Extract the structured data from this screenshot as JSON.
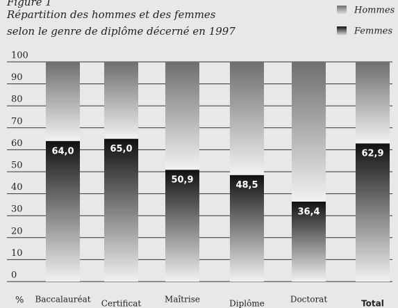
{
  "chart_data": {
    "type": "stacked_bar",
    "title": "Figure 1",
    "subtitle": [
      "Répartition des hommes et des femmes",
      "selon le genre de diplôme décerné en 1997"
    ],
    "ylabel": "%",
    "categories": [
      "Baccalauréat",
      "Certificat",
      "Maîtrise",
      "Diplôme",
      "Doctorat",
      "Total"
    ],
    "series": [
      {
        "name": "Femmes",
        "color": "#111111",
        "values": [
          64.0,
          65.0,
          50.9,
          48.5,
          36.4,
          62.9
        ],
        "value_labels": [
          "64,0",
          "65,0",
          "50,9",
          "48,5",
          "36,4",
          "62,9"
        ]
      },
      {
        "name": "Hommes",
        "color": "#6e6e6e",
        "values": [
          36.0,
          35.0,
          49.1,
          51.5,
          63.6,
          37.1
        ]
      }
    ],
    "ylim": [
      0,
      100
    ],
    "yticks": [
      0,
      10,
      20,
      30,
      40,
      50,
      60,
      70,
      80,
      90,
      100
    ],
    "grid": true,
    "legend": "top-right"
  }
}
